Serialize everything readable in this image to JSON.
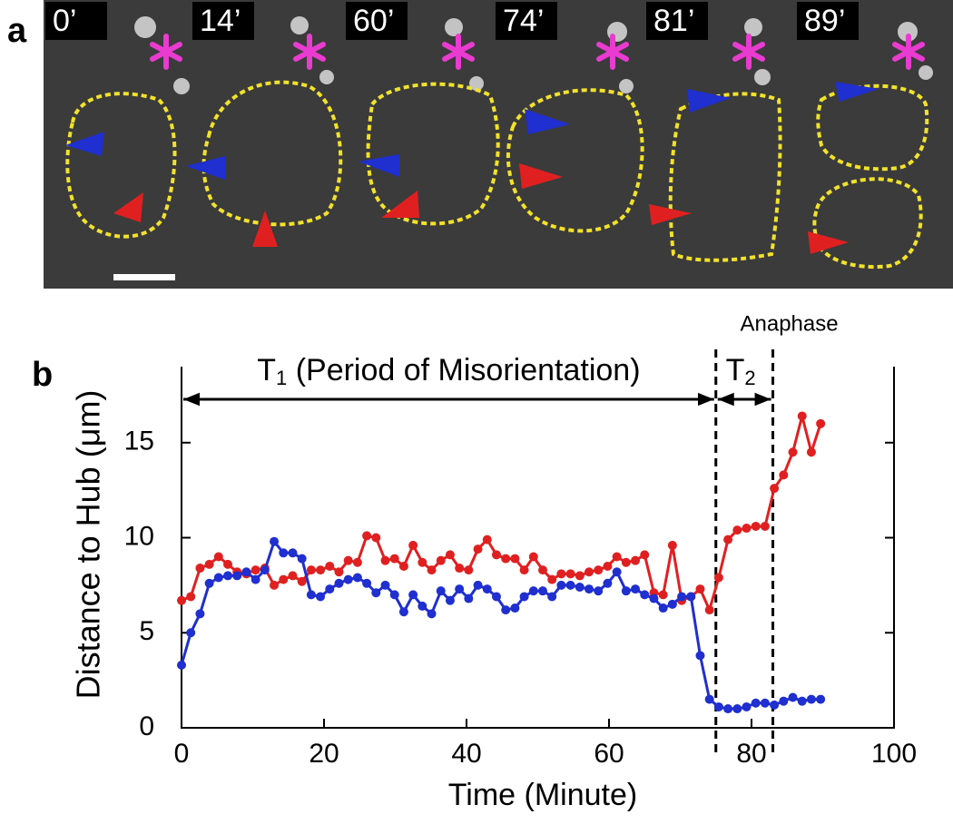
{
  "panel_a": {
    "label": "a",
    "frames": [
      "0’",
      "14’",
      "60’",
      "74’",
      "81’",
      "89’"
    ]
  },
  "chart_data": {
    "type": "line",
    "label": "b",
    "annotation_t1": {
      "main": "T",
      "sub": "1",
      "rest": " (Period of Misorientation)"
    },
    "annotation_t2": {
      "main": "T",
      "sub": "2"
    },
    "annotation_anaphase": "Anaphase",
    "markers": [
      75,
      83
    ],
    "xlabel": "Time (Minute)",
    "ylabel": "Distance to Hub (μm)",
    "x": [
      0,
      1.3,
      2.6,
      3.9,
      5.2,
      6.5,
      7.8,
      9.1,
      10.4,
      11.7,
      13,
      14.3,
      15.6,
      16.9,
      18.2,
      19.5,
      20.8,
      22.1,
      23.4,
      24.7,
      26,
      27.3,
      28.6,
      29.9,
      31.2,
      32.5,
      33.8,
      35.1,
      36.4,
      37.7,
      39,
      40.3,
      41.6,
      42.9,
      44.2,
      45.5,
      46.8,
      48.1,
      49.4,
      50.7,
      52,
      53.3,
      54.6,
      55.9,
      57.2,
      58.5,
      59.8,
      61.1,
      62.4,
      63.7,
      65,
      66.3,
      67.6,
      68.9,
      70.2,
      71.5,
      72.8,
      74.1,
      75.4,
      76.7,
      78,
      79.3,
      80.6,
      81.9,
      83.2,
      84.5,
      85.8,
      87.1,
      88.4,
      89.7
    ],
    "series": [
      {
        "color": "#e02020",
        "values": [
          6.7,
          6.9,
          8.4,
          8.6,
          9.0,
          8.6,
          8.2,
          8.1,
          8.3,
          8.4,
          7.5,
          7.8,
          8.0,
          7.7,
          8.3,
          8.3,
          8.5,
          8.2,
          8.8,
          8.7,
          10.1,
          10.0,
          8.8,
          8.9,
          8.5,
          9.6,
          8.7,
          8.3,
          8.8,
          9.1,
          8.4,
          8.3,
          9.4,
          9.9,
          9.1,
          8.9,
          8.9,
          8.3,
          9.0,
          8.3,
          7.8,
          8.1,
          8.1,
          8.0,
          8.2,
          8.3,
          8.5,
          9.0,
          8.7,
          8.8,
          9.1,
          7.1,
          7.0,
          9.6,
          6.7,
          6.9,
          7.3,
          6.2,
          7.9,
          9.9,
          10.4,
          10.5,
          10.6,
          10.6,
          12.6,
          13.3,
          14.5,
          16.4,
          14.5,
          16.0
        ]
      },
      {
        "color": "#1f2fd0",
        "values": [
          3.3,
          5.0,
          6.0,
          7.6,
          7.9,
          8.0,
          8.0,
          8.2,
          7.8,
          8.3,
          9.8,
          9.2,
          9.2,
          8.9,
          7.0,
          6.9,
          7.3,
          7.6,
          7.8,
          7.9,
          7.6,
          7.1,
          7.5,
          7.0,
          6.1,
          7.0,
          6.4,
          6.0,
          7.2,
          6.7,
          7.3,
          6.8,
          7.5,
          7.3,
          6.9,
          6.2,
          6.3,
          6.9,
          7.2,
          7.2,
          6.9,
          7.5,
          7.5,
          7.4,
          7.3,
          7.2,
          7.6,
          8.2,
          7.2,
          7.3,
          7.0,
          6.8,
          6.3,
          6.5,
          6.9,
          6.9,
          3.8,
          1.5,
          1.1,
          1.0,
          1.0,
          1.1,
          1.3,
          1.3,
          1.2,
          1.4,
          1.6,
          1.4,
          1.5,
          1.5
        ]
      }
    ],
    "xlim": [
      0,
      100
    ],
    "ylim": [
      0,
      19
    ],
    "xticks": [
      0,
      20,
      40,
      60,
      80,
      100
    ],
    "yticks": [
      0,
      5,
      10,
      15
    ]
  }
}
